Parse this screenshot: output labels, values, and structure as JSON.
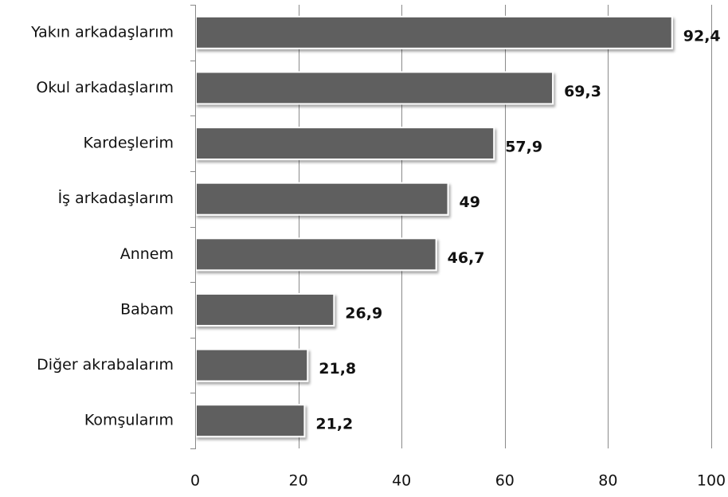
{
  "chart_data": {
    "type": "bar",
    "orientation": "horizontal",
    "title": "",
    "xlabel": "",
    "ylabel": "",
    "categories": [
      "Yakın arkadaşlarım",
      "Okul arkadaşlarım",
      "Kardeşlerim",
      "İş arkadaşlarım",
      "Annem",
      "Babam",
      "Diğer akrabalarım",
      "Komşularım"
    ],
    "values": [
      92.4,
      69.3,
      57.9,
      49,
      46.7,
      26.9,
      21.8,
      21.2
    ],
    "value_labels": [
      "92,4",
      "69,3",
      "57,9",
      "49",
      "46,7",
      "26,9",
      "21,8",
      "21,2"
    ],
    "xlim": [
      0,
      100
    ],
    "xticks": [
      0,
      20,
      40,
      60,
      80,
      100
    ],
    "xtick_labels": [
      "0",
      "20",
      "40",
      "60",
      "80",
      "100"
    ],
    "grid": "vertical",
    "legend": "none",
    "bar_color": "#5f5f5f",
    "bar_border_color": "#ffffff"
  }
}
